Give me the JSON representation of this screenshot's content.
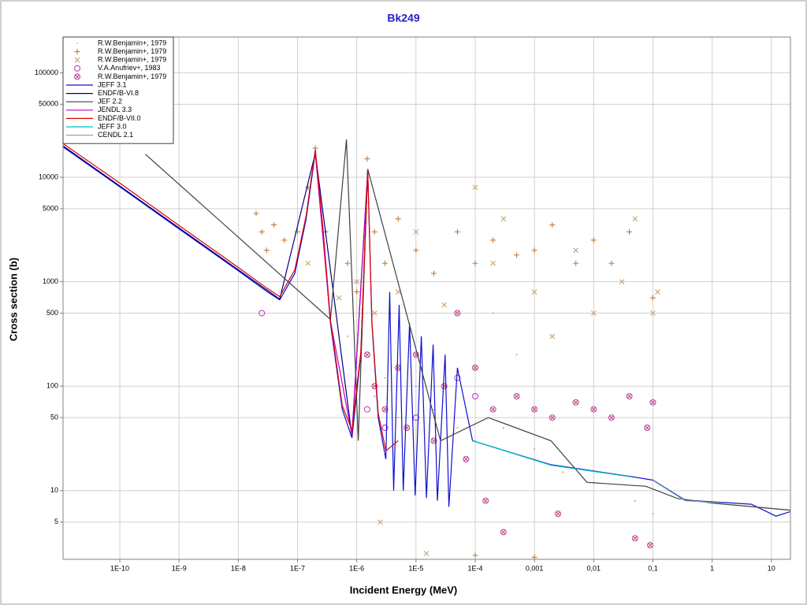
{
  "chart_data": {
    "type": "scatter",
    "title": "Bk249",
    "x_label": "Incident Energy (MeV)",
    "y_label": "Cross section (b)",
    "log_x": true,
    "log_y": true,
    "grid": true,
    "legend": "upper left",
    "xlim": [
      1.1e-11,
      21
    ],
    "ylim": [
      2.2,
      220000
    ],
    "xticks": [
      {
        "value": 1e-10,
        "label": "1E-10"
      },
      {
        "value": 1e-09,
        "label": "1E-9"
      },
      {
        "value": 1e-08,
        "label": "1E-8"
      },
      {
        "value": 1e-07,
        "label": "1E-7"
      },
      {
        "value": 1e-06,
        "label": "1E-6"
      },
      {
        "value": 1e-05,
        "label": "1E-5"
      },
      {
        "value": 0.0001,
        "label": "1E-4"
      },
      {
        "value": 0.001,
        "label": "0,001"
      },
      {
        "value": 0.01,
        "label": "0,01"
      },
      {
        "value": 0.1,
        "label": "0,1"
      },
      1,
      10
    ],
    "yticks": [
      5,
      10,
      50,
      100,
      500,
      1000,
      5000,
      10000,
      50000,
      100000
    ],
    "series": [
      {
        "name": "R.W.Benjamin+, 1979",
        "marker": "dot",
        "color": "#b89060",
        "x": [
          7e-07,
          1e-06,
          2e-06,
          5e-06,
          1e-05,
          2e-05,
          5e-05,
          0.0001,
          0.0003,
          0.001,
          0.003,
          0.01,
          0.05,
          0.1,
          0.0002,
          0.0005,
          4e-07,
          3e-06
        ],
        "values": [
          300,
          150,
          80,
          50,
          100,
          60,
          40,
          30,
          40,
          25,
          15,
          12,
          8,
          6,
          500,
          200,
          250,
          120
        ]
      },
      {
        "name": "R.W.Benjamin+, 1979",
        "marker": "plus",
        "color": "#c07a3a",
        "x": [
          2e-08,
          2.5e-08,
          3e-08,
          4e-08,
          6e-08,
          1e-07,
          1.5e-07,
          2e-07,
          3e-07,
          7e-07,
          1e-06,
          1.5e-06,
          2e-06,
          3e-06,
          5e-06,
          1e-05,
          2e-05,
          5e-05,
          0.0001,
          0.0002,
          0.0005,
          0.001,
          0.002,
          0.005,
          0.01,
          0.02,
          0.04,
          0.1,
          0.0001,
          0.001
        ],
        "values": [
          4500,
          3000,
          2000,
          3500,
          2500,
          3000,
          8000,
          19000,
          3000,
          1500,
          800,
          15000,
          3000,
          1500,
          4000,
          2000,
          1200,
          3000,
          1500,
          2500,
          1800,
          2000,
          3500,
          1500,
          2500,
          1500,
          3000,
          700,
          2.4,
          2.3
        ]
      },
      {
        "name": "R.W.Benjamin+, 1979",
        "marker": "x",
        "color": "#c8a070",
        "x": [
          1.5e-07,
          5e-07,
          1e-06,
          2e-06,
          5e-06,
          1e-05,
          3e-05,
          0.0001,
          0.0002,
          0.0003,
          0.001,
          0.002,
          0.005,
          0.01,
          0.03,
          0.05,
          0.1,
          0.12,
          2.5e-06,
          1.5e-05
        ],
        "values": [
          1500,
          700,
          1000,
          500,
          800,
          3000,
          600,
          8000,
          1500,
          4000,
          800,
          300,
          2000,
          500,
          1000,
          4000,
          500,
          800,
          5,
          2.5
        ]
      },
      {
        "name": "V.A.Anufriev+, 1983",
        "marker": "circle",
        "color": "#c040c0",
        "x": [
          2.5e-08,
          1.5e-06,
          3e-06,
          1e-05,
          5e-05,
          0.0001
        ],
        "values": [
          500,
          60,
          40,
          50,
          120,
          80
        ]
      },
      {
        "name": "R.W.Benjamin+, 1979",
        "marker": "circle-x",
        "color": "#c05090",
        "x": [
          1.5e-06,
          2e-06,
          3e-06,
          5e-06,
          7e-06,
          1e-05,
          2e-05,
          3e-05,
          5e-05,
          7e-05,
          0.0001,
          0.00015,
          0.0002,
          0.0003,
          0.0005,
          0.001,
          0.002,
          0.0025,
          0.005,
          0.01,
          0.02,
          0.04,
          0.05,
          0.08,
          0.1,
          0.09
        ],
        "values": [
          200,
          100,
          60,
          150,
          40,
          200,
          30,
          100,
          500,
          20,
          150,
          8,
          60,
          4,
          80,
          60,
          50,
          6,
          70,
          60,
          50,
          80,
          3.5,
          40,
          70,
          3
        ]
      },
      {
        "name": "JEFF 3.1",
        "marker": "line",
        "color": "#1010d0",
        "x": [
          1.1e-11,
          1e-10,
          1e-09,
          1e-08,
          3.1e-08,
          5e-08,
          9e-08,
          1.4e-07,
          2e-07,
          2.7e-07,
          3.6e-07,
          5.7e-07,
          8.3e-07,
          1.17e-06,
          1.53e-06,
          1.8e-06,
          2.3e-06,
          3.1e-06,
          3.6e-06,
          4.2e-06,
          5.2e-06,
          6.1e-06,
          7.8e-06,
          9.7e-06,
          1.23e-05,
          1.5e-05,
          1.95e-05,
          2.3e-05,
          3.1e-05,
          3.6e-05,
          5e-05,
          9e-05,
          0.0019,
          0.041,
          0.1,
          0.35,
          1.6,
          4.6,
          12,
          21
        ],
        "values": [
          19500,
          8100,
          3200,
          1270,
          800,
          670,
          1200,
          4000,
          17400,
          3000,
          400,
          60,
          32,
          200,
          11700,
          400,
          50,
          20,
          800,
          10,
          600,
          10,
          400,
          9,
          300,
          8.5,
          250,
          8,
          200,
          7,
          150,
          30,
          17.7,
          13.7,
          12.6,
          8.1,
          7.7,
          7.4,
          5.7,
          6.3
        ]
      },
      {
        "name": "ENDF/B-VI.8",
        "marker": "line",
        "color": "#000080",
        "x": [
          1.1e-11,
          1e-08,
          5e-08,
          2e-07,
          8.3e-07,
          1.53e-06
        ],
        "values": [
          20000,
          1300,
          680,
          17000,
          33,
          11500
        ]
      },
      {
        "name": "JEF 2.2",
        "marker": "line",
        "color": "#404040",
        "x": [
          2.7e-10,
          3.6e-07,
          6.7e-07,
          1.06e-06,
          1.53e-06,
          2.6e-05,
          0.000166,
          0.0019,
          0.0077,
          0.076,
          0.26,
          1,
          21
        ],
        "values": [
          16600,
          435,
          23000,
          30,
          12000,
          30,
          50,
          30,
          12,
          11,
          8.4,
          7.6,
          6.5
        ]
      },
      {
        "name": "JENDL 3.3",
        "marker": "line",
        "color": "#c000c0",
        "x": [
          2e-07,
          3.6e-07,
          8.3e-07,
          1.53e-06
        ],
        "values": [
          17000,
          420,
          34,
          11000
        ]
      },
      {
        "name": "ENDF/B-VII.0",
        "marker": "line",
        "color": "#e00000",
        "x": [
          1.1e-11,
          1e-10,
          1e-09,
          1e-08,
          3.1e-08,
          5e-08,
          9e-08,
          1.4e-07,
          2e-07,
          2.7e-07,
          3.6e-07,
          5.7e-07,
          8.3e-07,
          1.17e-06,
          1.53e-06,
          1.8e-06,
          2.3e-06,
          3.1e-06,
          5e-06
        ],
        "values": [
          21000,
          8800,
          3450,
          1370,
          860,
          720,
          1300,
          4300,
          18500,
          3200,
          430,
          65,
          38,
          210,
          12000,
          420,
          55,
          24,
          30
        ]
      },
      {
        "name": "JEFF 3.0",
        "marker": "line",
        "color": "#00c0c0",
        "x": [
          9e-05,
          0.0019,
          0.041
        ],
        "values": [
          30,
          17.5,
          13.6
        ]
      },
      {
        "name": "CENDL 2.1",
        "marker": "line",
        "color": "#80b0b0",
        "x": [
          0.1,
          0.35,
          1.6
        ],
        "values": [
          12.5,
          8,
          7.6
        ]
      }
    ]
  }
}
